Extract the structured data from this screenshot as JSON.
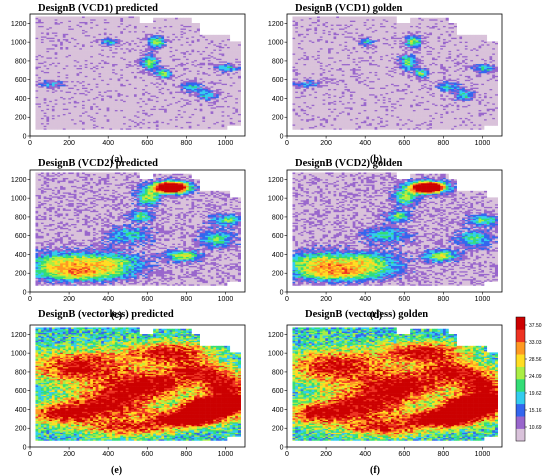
{
  "chart_data": [
    {
      "type": "heatmap",
      "panel": "a",
      "title": "DesignB (VCD1) predicted",
      "caption": "(a)",
      "xlim": [
        0,
        1100
      ],
      "ylim": [
        0,
        1300
      ],
      "x_ticks": [
        "0",
        "200",
        "400",
        "600",
        "800",
        "1000"
      ],
      "y_ticks": [
        "0",
        "200",
        "400",
        "600",
        "800",
        "1000",
        "1200"
      ]
    },
    {
      "type": "heatmap",
      "panel": "b",
      "title": "DesignB (VCD1) golden",
      "caption": "(b)",
      "xlim": [
        0,
        1100
      ],
      "ylim": [
        0,
        1300
      ],
      "x_ticks": [
        "0",
        "200",
        "400",
        "600",
        "800",
        "1000"
      ],
      "y_ticks": [
        "0",
        "200",
        "400",
        "600",
        "800",
        "1000",
        "1200"
      ]
    },
    {
      "type": "heatmap",
      "panel": "c",
      "title": "DesignB (VCD2) predicted",
      "caption": "(c)",
      "xlim": [
        0,
        1100
      ],
      "ylim": [
        0,
        1300
      ],
      "x_ticks": [
        "0",
        "200",
        "400",
        "600",
        "800",
        "1000"
      ],
      "y_ticks": [
        "0",
        "200",
        "400",
        "600",
        "800",
        "1000",
        "1200"
      ]
    },
    {
      "type": "heatmap",
      "panel": "d",
      "title": "DesignB (VCD2) golden",
      "caption": "(d)",
      "xlim": [
        0,
        1100
      ],
      "ylim": [
        0,
        1300
      ],
      "x_ticks": [
        "0",
        "200",
        "400",
        "600",
        "800",
        "1000"
      ],
      "y_ticks": [
        "0",
        "200",
        "400",
        "600",
        "800",
        "1000",
        "1200"
      ]
    },
    {
      "type": "heatmap",
      "panel": "e",
      "title": "DesignB (vectorless) predicted",
      "caption": "(e)",
      "xlim": [
        0,
        1100
      ],
      "ylim": [
        0,
        1300
      ],
      "x_ticks": [
        "0",
        "200",
        "400",
        "600",
        "800",
        "1000"
      ],
      "y_ticks": [
        "0",
        "200",
        "400",
        "600",
        "800",
        "1000",
        "1200"
      ]
    },
    {
      "type": "heatmap",
      "panel": "f",
      "title": "DesignB (vectorless) golden",
      "caption": "(f)",
      "xlim": [
        0,
        1100
      ],
      "ylim": [
        0,
        1300
      ],
      "x_ticks": [
        "0",
        "200",
        "400",
        "600",
        "800",
        "1000"
      ],
      "y_ticks": [
        "0",
        "200",
        "400",
        "600",
        "800",
        "1000",
        "1200"
      ]
    }
  ],
  "colorbar": {
    "labels": [
      "37.50",
      "33.03",
      "28.56",
      "24.09",
      "19.62",
      "15.16",
      "10.69"
    ],
    "colors": [
      "#d9c2da",
      "#9966cc",
      "#3366ee",
      "#33ccee",
      "#33dd77",
      "#aaee44",
      "#ffdd22",
      "#ff9922",
      "#ee3322",
      "#cc0000"
    ]
  }
}
